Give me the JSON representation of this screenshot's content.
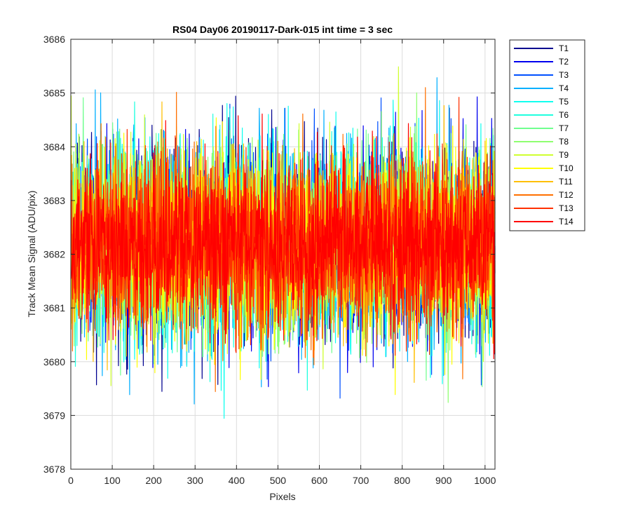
{
  "chart_data": {
    "type": "line",
    "title": "RS04 Day06 20190117-Dark-015 int time = 3 sec",
    "xlabel": "Pixels",
    "ylabel": "Track Mean Signal (ADU/pix)",
    "xlim": [
      0,
      1024
    ],
    "ylim": [
      3678,
      3686
    ],
    "xticks": [
      0,
      100,
      200,
      300,
      400,
      500,
      600,
      700,
      800,
      900,
      1000
    ],
    "yticks": [
      3678,
      3679,
      3680,
      3681,
      3682,
      3683,
      3684,
      3685,
      3686
    ],
    "grid": true,
    "legend_position": "outside-top-right",
    "x_start": 1,
    "x_end": 1024,
    "series": [
      {
        "name": "T1",
        "color": "#00008f",
        "mean": 3682.2,
        "spread": 1.05,
        "min": 3679.3,
        "max": 3685.2
      },
      {
        "name": "T2",
        "color": "#0000ef",
        "mean": 3682.2,
        "spread": 1.05,
        "min": 3678.5,
        "max": 3685.4
      },
      {
        "name": "T3",
        "color": "#0050ff",
        "mean": 3682.2,
        "spread": 1.05,
        "min": 3678.6,
        "max": 3685.4
      },
      {
        "name": "T4",
        "color": "#00afff",
        "mean": 3682.2,
        "spread": 1.05,
        "min": 3679.2,
        "max": 3685.4
      },
      {
        "name": "T5",
        "color": "#10ffef",
        "mean": 3682.2,
        "spread": 1.05,
        "min": 3678.9,
        "max": 3685.8
      },
      {
        "name": "T6",
        "color": "#20ffdf",
        "mean": 3682.2,
        "spread": 1.0,
        "min": 3679.3,
        "max": 3685.6
      },
      {
        "name": "T7",
        "color": "#70ff8f",
        "mean": 3682.2,
        "spread": 1.0,
        "min": 3679.5,
        "max": 3685.6
      },
      {
        "name": "T8",
        "color": "#8fff70",
        "mean": 3682.2,
        "spread": 1.0,
        "min": 3679.1,
        "max": 3685.5
      },
      {
        "name": "T9",
        "color": "#cfff30",
        "mean": 3682.2,
        "spread": 1.0,
        "min": 3679.0,
        "max": 3685.5
      },
      {
        "name": "T10",
        "color": "#ffff00",
        "mean": 3682.2,
        "spread": 1.0,
        "min": 3679.3,
        "max": 3685.5
      },
      {
        "name": "T11",
        "color": "#ffbf00",
        "mean": 3682.2,
        "spread": 0.95,
        "min": 3679.4,
        "max": 3685.4
      },
      {
        "name": "T12",
        "color": "#ff7000",
        "mean": 3682.2,
        "spread": 0.95,
        "min": 3678.6,
        "max": 3685.3
      },
      {
        "name": "T13",
        "color": "#ff3000",
        "mean": 3682.2,
        "spread": 0.95,
        "min": 3678.9,
        "max": 3685.5
      },
      {
        "name": "T14",
        "color": "#ff0000",
        "mean": 3682.2,
        "spread": 0.9,
        "min": 3679.5,
        "max": 3685.2
      }
    ]
  }
}
